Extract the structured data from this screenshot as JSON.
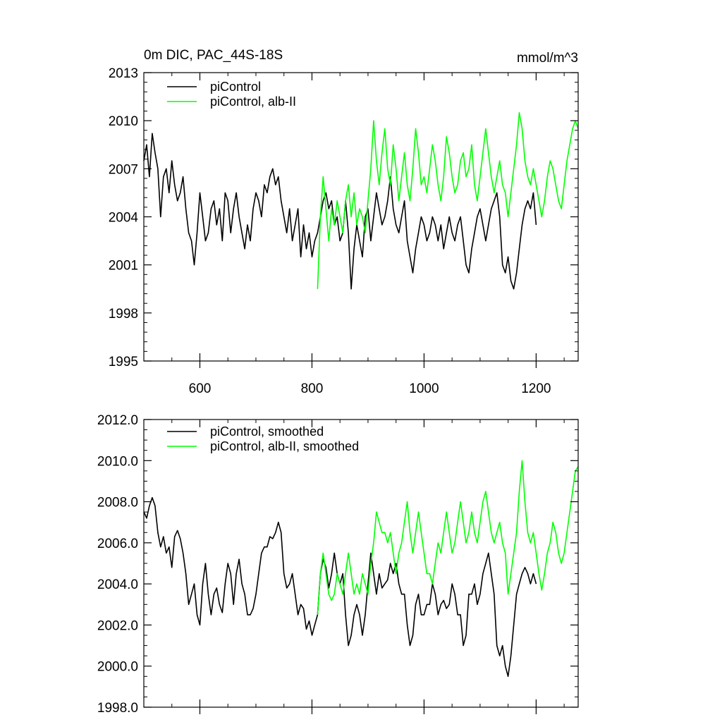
{
  "figure": {
    "background": "#ffffff"
  },
  "chart_data": [
    {
      "type": "line",
      "title": "0m DIC, PAC_44S-18S",
      "units": "mmol/m^3",
      "xlabel": "",
      "ylabel": "",
      "xlim": [
        500,
        1275
      ],
      "ylim": [
        1995,
        2013
      ],
      "xticks": [
        600,
        800,
        1000,
        1200
      ],
      "yticks": [
        1995,
        1998,
        2001,
        2004,
        2007,
        2010,
        2013
      ],
      "ytick_labels": [
        "1995",
        "1998",
        "2001",
        "2004",
        "2007",
        "2010",
        "2013"
      ],
      "legend_position": "top-left",
      "series": [
        {
          "name": "piControl",
          "color": "#000000",
          "x": [
            500,
            505,
            510,
            515,
            520,
            525,
            530,
            535,
            540,
            545,
            550,
            555,
            560,
            565,
            570,
            575,
            580,
            585,
            590,
            595,
            600,
            605,
            610,
            615,
            620,
            625,
            630,
            635,
            640,
            645,
            650,
            655,
            660,
            665,
            670,
            675,
            680,
            685,
            690,
            695,
            700,
            705,
            710,
            715,
            720,
            725,
            730,
            735,
            740,
            745,
            750,
            755,
            760,
            765,
            770,
            775,
            780,
            785,
            790,
            795,
            800,
            805,
            810,
            815,
            820,
            825,
            830,
            835,
            840,
            845,
            850,
            855,
            860,
            865,
            870,
            875,
            880,
            885,
            890,
            895,
            900,
            905,
            910,
            915,
            920,
            925,
            930,
            935,
            940,
            945,
            950,
            955,
            960,
            965,
            970,
            975,
            980,
            985,
            990,
            995,
            1000,
            1005,
            1010,
            1015,
            1020,
            1025,
            1030,
            1035,
            1040,
            1045,
            1050,
            1055,
            1060,
            1065,
            1070,
            1075,
            1080,
            1085,
            1090,
            1095,
            1100,
            1105,
            1110,
            1115,
            1120,
            1125,
            1130,
            1135,
            1140,
            1145,
            1150,
            1155,
            1160,
            1165,
            1170,
            1175,
            1180,
            1185,
            1190,
            1195,
            1200
          ],
          "y": [
            2007.5,
            2008.5,
            2006.5,
            2009.2,
            2008.0,
            2007.0,
            2004.0,
            2006.5,
            2007.0,
            2005.5,
            2007.5,
            2006.0,
            2005.0,
            2005.5,
            2006.5,
            2004.5,
            2003.0,
            2002.5,
            2001.0,
            2003.0,
            2005.5,
            2004.0,
            2002.5,
            2003.0,
            2004.5,
            2005.0,
            2003.5,
            2004.5,
            2002.5,
            2005.5,
            2005.0,
            2003.0,
            2004.5,
            2005.5,
            2004.0,
            2003.0,
            2002.0,
            2003.5,
            2002.5,
            2004.5,
            2005.5,
            2005.0,
            2004.0,
            2006.0,
            2005.5,
            2006.5,
            2007.0,
            2006.0,
            2006.5,
            2005.0,
            2004.0,
            2003.0,
            2004.5,
            2002.5,
            2003.5,
            2004.5,
            2001.5,
            2003.5,
            2002.0,
            2003.0,
            2001.5,
            2002.5,
            2003.0,
            2004.0,
            2005.0,
            2005.5,
            2004.5,
            2005.0,
            2003.5,
            2004.0,
            2002.5,
            2003.0,
            2005.0,
            2003.0,
            1999.5,
            2002.0,
            2003.5,
            2002.5,
            2001.5,
            2004.0,
            2004.5,
            2002.5,
            2004.0,
            2005.5,
            2004.5,
            2003.5,
            2004.0,
            2005.0,
            2006.5,
            2004.5,
            2003.5,
            2003.0,
            2004.0,
            2005.0,
            2002.5,
            2001.5,
            2000.5,
            2002.0,
            2003.0,
            2004.0,
            2003.5,
            2002.5,
            2003.0,
            2004.0,
            2003.5,
            2002.5,
            2003.5,
            2002.0,
            2003.0,
            2004.0,
            2003.0,
            2002.5,
            2003.5,
            2004.0,
            2002.5,
            2001.0,
            2000.5,
            2002.0,
            2003.0,
            2004.0,
            2004.5,
            2003.5,
            2002.5,
            2003.5,
            2004.5,
            2005.0,
            2005.5,
            2004.0,
            2001.0,
            2000.5,
            2001.5,
            2000.0,
            1999.5,
            2000.5,
            2002.0,
            2003.5,
            2004.5,
            2005.0,
            2004.5,
            2005.5,
            2003.5
          ]
        },
        {
          "name": "piControl, alb-II",
          "color": "#00ff00",
          "x": [
            810,
            815,
            820,
            825,
            830,
            835,
            840,
            845,
            850,
            855,
            860,
            865,
            870,
            875,
            880,
            885,
            890,
            895,
            900,
            905,
            910,
            915,
            920,
            925,
            930,
            935,
            940,
            945,
            950,
            955,
            960,
            965,
            970,
            975,
            980,
            985,
            990,
            995,
            1000,
            1005,
            1010,
            1015,
            1020,
            1025,
            1030,
            1035,
            1040,
            1045,
            1050,
            1055,
            1060,
            1065,
            1070,
            1075,
            1080,
            1085,
            1090,
            1095,
            1100,
            1105,
            1110,
            1115,
            1120,
            1125,
            1130,
            1135,
            1140,
            1145,
            1150,
            1155,
            1160,
            1165,
            1170,
            1175,
            1180,
            1185,
            1190,
            1195,
            1200,
            1205,
            1210,
            1215,
            1220,
            1225,
            1230,
            1235,
            1240,
            1245,
            1250,
            1255,
            1260,
            1265,
            1270,
            1275
          ],
          "y": [
            1999.5,
            2004.0,
            2006.5,
            2004.5,
            2002.5,
            2004.5,
            2003.5,
            2005.0,
            2004.0,
            2003.0,
            2005.0,
            2006.0,
            2004.0,
            2005.5,
            2003.5,
            2004.5,
            2004.0,
            2003.0,
            2005.0,
            2007.0,
            2010.0,
            2007.5,
            2006.0,
            2008.0,
            2009.5,
            2007.0,
            2006.0,
            2008.5,
            2007.0,
            2005.0,
            2006.5,
            2008.0,
            2006.0,
            2005.0,
            2007.0,
            2009.5,
            2008.0,
            2006.0,
            2006.5,
            2005.5,
            2007.0,
            2008.5,
            2007.5,
            2006.0,
            2005.0,
            2006.5,
            2009.0,
            2008.0,
            2006.5,
            2005.5,
            2006.0,
            2007.5,
            2008.0,
            2006.5,
            2007.0,
            2008.5,
            2006.0,
            2005.0,
            2006.5,
            2008.0,
            2009.5,
            2008.0,
            2006.5,
            2005.5,
            2006.5,
            2007.5,
            2006.0,
            2005.5,
            2004.0,
            2005.5,
            2007.0,
            2008.5,
            2010.5,
            2009.5,
            2007.5,
            2006.5,
            2006.0,
            2007.0,
            2006.0,
            2005.0,
            2004.0,
            2005.0,
            2006.5,
            2007.5,
            2007.0,
            2006.0,
            2005.0,
            2004.5,
            2006.0,
            2007.5,
            2008.5,
            2009.5,
            2010.0,
            2009.5
          ]
        }
      ]
    },
    {
      "type": "line",
      "title": "",
      "xlabel": "",
      "ylabel": "",
      "xlim": [
        500,
        1275
      ],
      "ylim": [
        1998,
        2012
      ],
      "xticks": [
        600,
        800,
        1000,
        1200
      ],
      "yticks": [
        1998,
        2000,
        2002,
        2004,
        2006,
        2008,
        2010,
        2012
      ],
      "ytick_labels": [
        "1998.0",
        "2000.0",
        "2002.0",
        "2004.0",
        "2006.0",
        "2008.0",
        "2010.0",
        "2012.0"
      ],
      "legend_position": "top-left",
      "series": [
        {
          "name": "piControl, smoothed",
          "color": "#000000",
          "x": [
            500,
            505,
            510,
            515,
            520,
            525,
            530,
            535,
            540,
            545,
            550,
            555,
            560,
            565,
            570,
            575,
            580,
            585,
            590,
            595,
            600,
            605,
            610,
            615,
            620,
            625,
            630,
            635,
            640,
            645,
            650,
            655,
            660,
            665,
            670,
            675,
            680,
            685,
            690,
            695,
            700,
            705,
            710,
            715,
            720,
            725,
            730,
            735,
            740,
            745,
            750,
            755,
            760,
            765,
            770,
            775,
            780,
            785,
            790,
            795,
            800,
            805,
            810,
            815,
            820,
            825,
            830,
            835,
            840,
            845,
            850,
            855,
            860,
            865,
            870,
            875,
            880,
            885,
            890,
            895,
            900,
            905,
            910,
            915,
            920,
            925,
            930,
            935,
            940,
            945,
            950,
            955,
            960,
            965,
            970,
            975,
            980,
            985,
            990,
            995,
            1000,
            1005,
            1010,
            1015,
            1020,
            1025,
            1030,
            1035,
            1040,
            1045,
            1050,
            1055,
            1060,
            1065,
            1070,
            1075,
            1080,
            1085,
            1090,
            1095,
            1100,
            1105,
            1110,
            1115,
            1120,
            1125,
            1130,
            1135,
            1140,
            1145,
            1150,
            1155,
            1160,
            1165,
            1170,
            1175,
            1180,
            1185,
            1190,
            1195,
            1200
          ],
          "y": [
            2007.5,
            2007.2,
            2007.8,
            2008.2,
            2007.8,
            2006.5,
            2005.8,
            2006.3,
            2005.5,
            2005.8,
            2004.8,
            2006.3,
            2006.6,
            2006.2,
            2005.5,
            2004.5,
            2003.0,
            2003.5,
            2004.0,
            2002.5,
            2002.0,
            2004.0,
            2005.0,
            2003.5,
            2002.5,
            2003.5,
            2003.8,
            2003.0,
            2002.6,
            2004.0,
            2005.0,
            2004.5,
            2003.0,
            2004.5,
            2005.2,
            2004.0,
            2003.5,
            2002.5,
            2002.5,
            2002.8,
            2003.5,
            2004.5,
            2005.5,
            2005.8,
            2005.8,
            2006.3,
            2006.2,
            2006.5,
            2007.0,
            2006.5,
            2004.5,
            2003.8,
            2004.0,
            2004.5,
            2003.5,
            2002.5,
            2003.0,
            2002.8,
            2001.8,
            2002.2,
            2001.5,
            2002.0,
            2002.5,
            2004.5,
            2005.2,
            2004.8,
            2003.8,
            2004.5,
            2005.5,
            2004.5,
            2004.0,
            2004.5,
            2002.5,
            2001.0,
            2001.5,
            2002.5,
            2003.0,
            2002.5,
            2001.5,
            2002.5,
            2004.0,
            2005.5,
            2004.5,
            2003.5,
            2004.5,
            2003.8,
            2004.0,
            2004.2,
            2005.0,
            2004.5,
            2005.0,
            2004.0,
            2003.5,
            2003.5,
            2002.0,
            2001.0,
            2001.5,
            2003.0,
            2003.5,
            2002.5,
            2002.5,
            2003.0,
            2003.0,
            2004.0,
            2003.5,
            2002.5,
            2003.0,
            2003.2,
            2002.8,
            2003.0,
            2004.0,
            2003.5,
            2002.5,
            2002.5,
            2001.0,
            2001.5,
            2003.5,
            2003.5,
            2004.0,
            2003.0,
            2003.5,
            2004.5,
            2005.0,
            2005.5,
            2004.5,
            2003.5,
            2001.0,
            2000.5,
            2001.0,
            2000.0,
            1999.5,
            2000.5,
            2002.0,
            2003.5,
            2004.0,
            2004.5,
            2004.8,
            2004.5,
            2004.0,
            2004.5,
            2004.0
          ]
        },
        {
          "name": "piControl, alb-II, smoothed",
          "color": "#00ff00",
          "x": [
            810,
            815,
            820,
            825,
            830,
            835,
            840,
            845,
            850,
            855,
            860,
            865,
            870,
            875,
            880,
            885,
            890,
            895,
            900,
            905,
            910,
            915,
            920,
            925,
            930,
            935,
            940,
            945,
            950,
            955,
            960,
            965,
            970,
            975,
            980,
            985,
            990,
            995,
            1000,
            1005,
            1010,
            1015,
            1020,
            1025,
            1030,
            1035,
            1040,
            1045,
            1050,
            1055,
            1060,
            1065,
            1070,
            1075,
            1080,
            1085,
            1090,
            1095,
            1100,
            1105,
            1110,
            1115,
            1120,
            1125,
            1130,
            1135,
            1140,
            1145,
            1150,
            1155,
            1160,
            1165,
            1170,
            1175,
            1180,
            1185,
            1190,
            1195,
            1200,
            1205,
            1210,
            1215,
            1220,
            1225,
            1230,
            1235,
            1240,
            1245,
            1250,
            1255,
            1260,
            1265,
            1270,
            1275
          ],
          "y": [
            2002.5,
            2004.5,
            2005.5,
            2004.5,
            2003.5,
            2003.2,
            2003.5,
            2004.5,
            2004.0,
            2003.5,
            2004.5,
            2005.5,
            2004.5,
            2003.5,
            2004.0,
            2003.5,
            2004.5,
            2004.0,
            2003.5,
            2005.0,
            2006.0,
            2007.5,
            2007.0,
            2006.5,
            2006.5,
            2006.0,
            2006.5,
            2005.5,
            2004.5,
            2005.5,
            2006.0,
            2007.0,
            2008.0,
            2006.5,
            2005.5,
            2006.5,
            2007.5,
            2006.5,
            2005.5,
            2004.5,
            2004.5,
            2004.0,
            2005.0,
            2006.0,
            2005.5,
            2006.5,
            2007.5,
            2006.5,
            2005.5,
            2006.0,
            2007.0,
            2008.0,
            2007.0,
            2006.0,
            2006.5,
            2007.5,
            2006.5,
            2006.0,
            2007.0,
            2008.0,
            2008.5,
            2007.5,
            2006.5,
            2006.0,
            2006.5,
            2007.0,
            2006.0,
            2005.5,
            2003.5,
            2004.5,
            2005.5,
            2006.5,
            2008.5,
            2010.0,
            2008.0,
            2006.5,
            2006.0,
            2006.5,
            2005.5,
            2004.5,
            2003.7,
            2004.5,
            2005.5,
            2006.0,
            2007.0,
            2006.5,
            2005.5,
            2005.0,
            2005.5,
            2006.5,
            2007.5,
            2008.5,
            2009.5,
            2009.7
          ]
        }
      ]
    }
  ]
}
